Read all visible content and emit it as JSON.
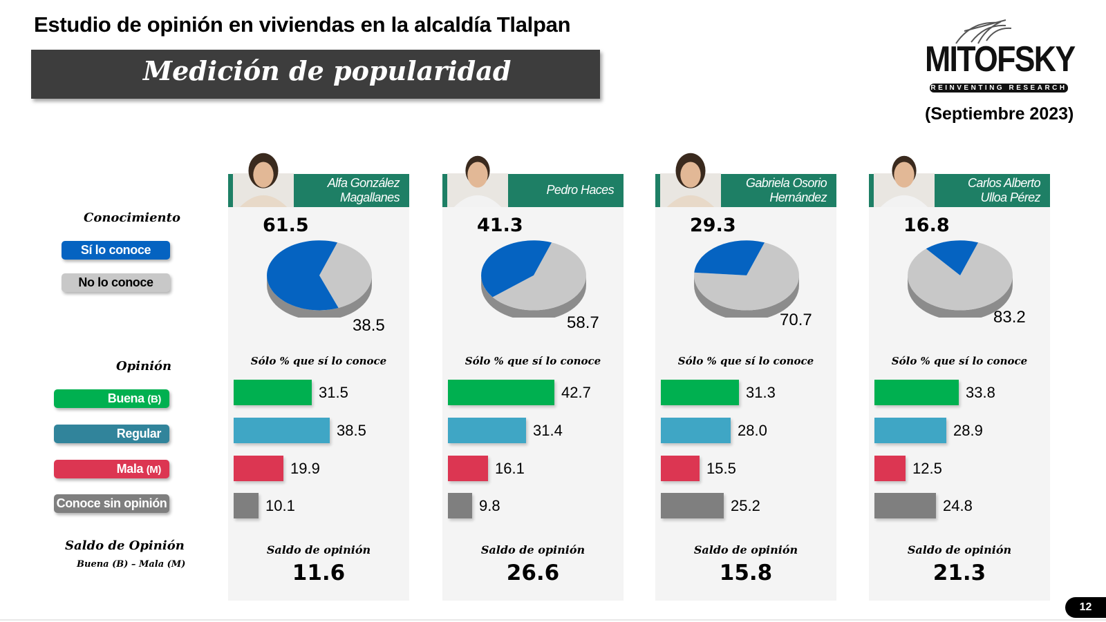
{
  "header": {
    "title": "Estudio de opinión en viviendas en la alcaldía Tlalpan",
    "banner": "Medición de popularidad",
    "brand": "MITOFSKY",
    "tagline": "REINVENTING RESEARCH",
    "date": "(Septiembre 2023)"
  },
  "legend": {
    "conocimiento_title": "Conocimiento",
    "si_conoce": "Sí lo conoce",
    "no_conoce": "No lo conoce",
    "opinion_title": "Opinión",
    "buena": "Buena",
    "buena_tag": "(B)",
    "regular": "Regular",
    "mala": "Mala",
    "mala_tag": "(M)",
    "sin_opinion": "Conoce sin opinión",
    "saldo_title": "Saldo de Opinión",
    "saldo_formula": "Buena (B) – Mala (M)"
  },
  "colors": {
    "header_green": "#1e7f65",
    "known_blue": "#0563c1",
    "unknown_gray": "#c8c8c8",
    "buena": "#00b050",
    "regular_pill": "#31849b",
    "regular_bar": "#3fa6c5",
    "mala": "#dc3652",
    "sin_opinion": "#7f7f7f"
  },
  "labels": {
    "solo_pct": "Sólo % que sí lo conoce",
    "saldo": "Saldo de opinión"
  },
  "chart_data": [
    {
      "type": "pie",
      "title": "Alfa González Magallanes",
      "series": [
        {
          "name": "Conocimiento",
          "values": [
            61.5,
            38.5
          ]
        }
      ],
      "categories": [
        "Sí lo conoce",
        "No lo conoce"
      ]
    },
    {
      "type": "pie",
      "title": "Pedro Haces",
      "series": [
        {
          "name": "Conocimiento",
          "values": [
            41.3,
            58.7
          ]
        }
      ],
      "categories": [
        "Sí lo conoce",
        "No lo conoce"
      ]
    },
    {
      "type": "pie",
      "title": "Gabriela Osorio Hernández",
      "series": [
        {
          "name": "Conocimiento",
          "values": [
            29.3,
            70.7
          ]
        }
      ],
      "categories": [
        "Sí lo conoce",
        "No lo conoce"
      ]
    },
    {
      "type": "pie",
      "title": "Carlos Alberto Ulloa Pérez",
      "series": [
        {
          "name": "Conocimiento",
          "values": [
            16.8,
            83.2
          ]
        }
      ],
      "categories": [
        "Sí lo conoce",
        "No lo conoce"
      ]
    },
    {
      "type": "bar",
      "title": "Alfa González Magallanes",
      "categories": [
        "Buena",
        "Regular",
        "Mala",
        "Conoce sin opinión"
      ],
      "values": [
        31.5,
        38.5,
        19.9,
        10.1
      ],
      "display": [
        "31.5",
        "38.5",
        "19.9",
        "10.1"
      ],
      "saldo": "11.6"
    },
    {
      "type": "bar",
      "title": "Pedro Haces",
      "categories": [
        "Buena",
        "Regular",
        "Mala",
        "Conoce sin opinión"
      ],
      "values": [
        42.7,
        31.4,
        16.1,
        9.8
      ],
      "display": [
        "42.7",
        "31.4",
        "16.1",
        "9.8"
      ],
      "saldo": "26.6"
    },
    {
      "type": "bar",
      "title": "Gabriela Osorio Hernández",
      "categories": [
        "Buena",
        "Regular",
        "Mala",
        "Conoce sin opinión"
      ],
      "values": [
        31.3,
        28.0,
        15.5,
        25.2
      ],
      "display": [
        "31.3",
        "28.0",
        "15.5",
        "25.2"
      ],
      "saldo": "15.8"
    },
    {
      "type": "bar",
      "title": "Carlos Alberto Ulloa Pérez",
      "categories": [
        "Buena",
        "Regular",
        "Mala",
        "Conoce sin opinión"
      ],
      "values": [
        33.8,
        28.9,
        12.5,
        24.8
      ],
      "display": [
        "33.8",
        "28.9",
        "12.5",
        "24.8"
      ],
      "saldo": "21.3"
    }
  ],
  "candidates": [
    {
      "name_line1": "Alfa González",
      "name_line2": "Magallanes",
      "photo": "woman-portrait"
    },
    {
      "name_line1": "",
      "name_line2": "Pedro Haces",
      "photo": "man-portrait"
    },
    {
      "name_line1": "Gabriela Osorio",
      "name_line2": "Hernández",
      "photo": "woman-portrait"
    },
    {
      "name_line1": "Carlos Alberto",
      "name_line2": "Ulloa Pérez",
      "photo": "man-portrait"
    }
  ],
  "page": "12"
}
